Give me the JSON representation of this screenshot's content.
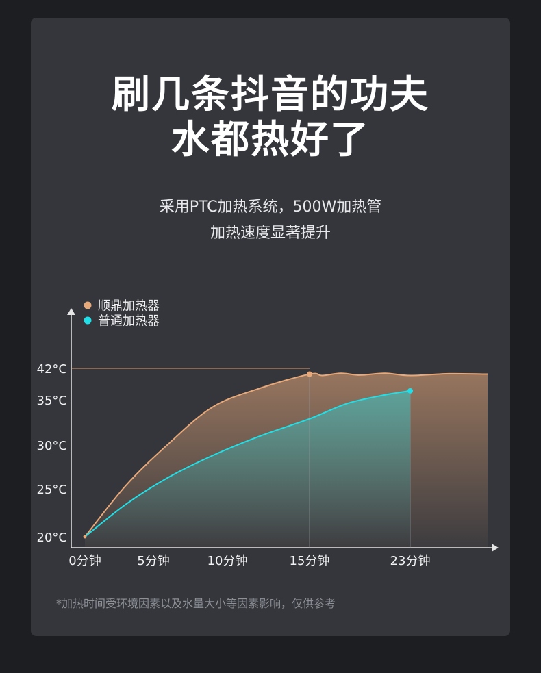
{
  "headline": {
    "line1": "刷几条抖音的功夫",
    "line2": "水都热好了"
  },
  "subheadline": {
    "line1": "采用PTC加热系统，500W加热管",
    "line2": "加热速度显著提升"
  },
  "footnote": "*加热时间受环境因素以及水量大小等因素影响，仅供参考",
  "colors": {
    "shunding": "#e8a97a",
    "normal": "#1fe0e8",
    "background": "#1d1e22",
    "card": "#34363c"
  },
  "chart_data": {
    "type": "line",
    "x_ticks": [
      {
        "value": 0,
        "label": "0分钟"
      },
      {
        "value": 5,
        "label": "5分钟"
      },
      {
        "value": 10,
        "label": "10分钟"
      },
      {
        "value": 15,
        "label": "15分钟"
      },
      {
        "value": 23,
        "label": "23分钟"
      }
    ],
    "y_ticks": [
      {
        "value": 20,
        "label": "20°C"
      },
      {
        "value": 25,
        "label": "25°C"
      },
      {
        "value": 30,
        "label": "30°C"
      },
      {
        "value": 35,
        "label": "35°C"
      },
      {
        "value": 42,
        "label": "42°C"
      }
    ],
    "series": [
      {
        "name": "顺鼎加热器",
        "color": "#e8a97a",
        "points": [
          [
            0,
            20
          ],
          [
            3,
            25.4
          ],
          [
            6,
            30.1
          ],
          [
            9,
            34.2
          ],
          [
            12,
            37.6
          ],
          [
            15,
            40.7
          ],
          [
            16,
            40.4
          ],
          [
            17.5,
            40.9
          ],
          [
            19,
            40.5
          ],
          [
            21,
            40.9
          ],
          [
            23,
            40.4
          ],
          [
            25,
            40.8
          ],
          [
            27,
            40.7
          ]
        ],
        "marker": [
          15,
          40.7
        ]
      },
      {
        "name": "普通加热器",
        "color": "#1fe0e8",
        "points": [
          [
            0,
            20
          ],
          [
            3,
            23.4
          ],
          [
            6,
            26.3
          ],
          [
            9,
            28.8
          ],
          [
            12,
            31.0
          ],
          [
            15,
            32.9
          ],
          [
            18,
            34.6
          ],
          [
            21,
            36.1
          ],
          [
            23,
            37.0
          ]
        ],
        "marker": [
          23,
          37.0
        ]
      }
    ],
    "reference_line_y": 42,
    "legend_position": "top-left"
  }
}
